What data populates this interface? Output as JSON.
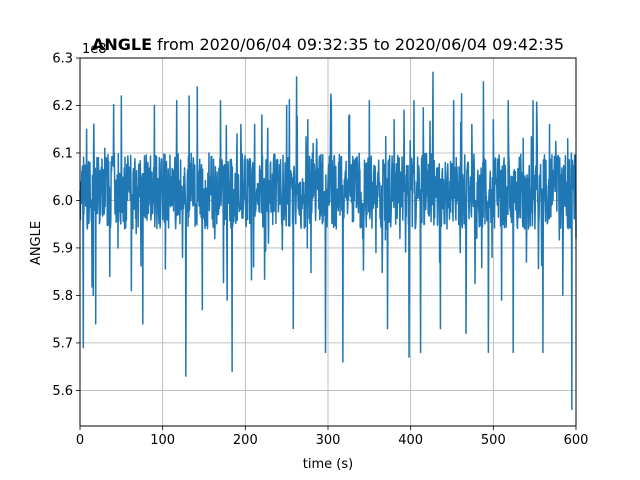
{
  "chart_data": {
    "type": "line",
    "title_bold": "ANGLE",
    "title_rest": " from 2020/06/04 09:32:35 to 2020/06/04 09:42:35",
    "xlabel": "time (s)",
    "ylabel": "ANGLE",
    "offset_label": "1e8",
    "xlim": [
      0,
      600
    ],
    "ylim": [
      5.525,
      6.3
    ],
    "xticks": [
      0,
      100,
      200,
      300,
      400,
      500,
      600
    ],
    "xtick_labels": [
      "0",
      "100",
      "200",
      "300",
      "400",
      "500",
      "600"
    ],
    "yticks": [
      5.6,
      5.7,
      5.8,
      5.9,
      6.0,
      6.1,
      6.2,
      6.3
    ],
    "ytick_labels": [
      "5.6",
      "5.7",
      "5.8",
      "5.9",
      "6.0",
      "6.1",
      "6.2",
      "6.3"
    ],
    "grid": true,
    "series": [
      {
        "color": "#1f77b4",
        "description_of_shape": "dense noisy signal centered near 6.02 with band approx 5.95–6.10",
        "x": [
          0,
          4,
          8,
          12,
          16,
          19,
          24,
          30,
          36,
          42,
          46,
          50,
          55,
          60,
          68,
          76,
          82,
          90,
          100,
          110,
          117,
          124,
          128,
          132,
          140,
          148,
          156,
          163,
          170,
          178,
          184,
          190,
          200,
          210,
          220,
          228,
          236,
          244,
          250,
          258,
          262,
          268,
          275,
          282,
          290,
          297,
          304,
          310,
          318,
          326,
          334,
          342,
          350,
          358,
          366,
          372,
          380,
          387,
          392,
          398,
          404,
          412,
          420,
          427,
          436,
          444,
          452,
          460,
          467,
          474,
          480,
          488,
          494,
          500,
          510,
          518,
          524,
          532,
          540,
          548,
          553,
          560,
          568,
          575,
          584,
          590,
          595,
          600
        ],
        "y": [
          6.02,
          5.69,
          6.15,
          6.08,
          5.8,
          5.74,
          5.96,
          6.11,
          5.84,
          6.02,
          5.9,
          6.22,
          6.0,
          6.07,
          5.93,
          5.74,
          6.08,
          6.2,
          5.96,
          6.05,
          6.21,
          5.88,
          5.63,
          6.22,
          5.99,
          5.77,
          6.1,
          5.92,
          6.21,
          5.79,
          5.64,
          6.14,
          6.0,
          5.86,
          6.18,
          5.91,
          6.07,
          5.95,
          6.2,
          5.73,
          6.26,
          6.01,
          5.9,
          6.12,
          5.96,
          5.68,
          6.2,
          5.94,
          5.66,
          6.18,
          6.02,
          5.92,
          6.21,
          5.89,
          5.93,
          5.73,
          6.17,
          5.92,
          6.19,
          5.67,
          6.21,
          5.68,
          6.01,
          6.27,
          5.73,
          5.94,
          6.21,
          5.89,
          5.72,
          6.16,
          5.92,
          6.25,
          5.68,
          6.17,
          5.79,
          6.21,
          5.68,
          6.0,
          5.87,
          6.21,
          6.15,
          5.68,
          6.16,
          6.02,
          5.8,
          6.13,
          5.56,
          5.92
        ]
      }
    ]
  }
}
